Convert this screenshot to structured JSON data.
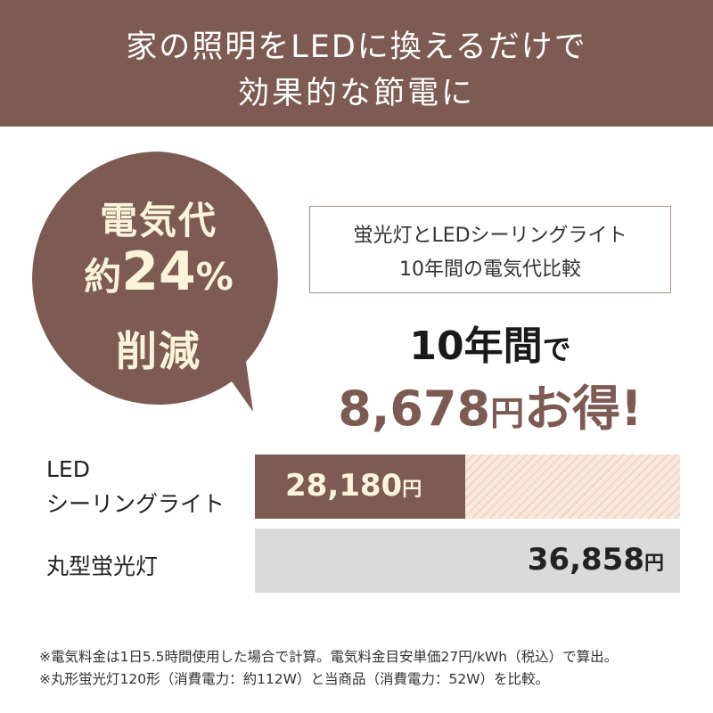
{
  "header": {
    "line1": "家の照明をLEDに換えるだけで",
    "line2": "効果的な節電に"
  },
  "bubble": {
    "line1": "電気代",
    "line2_prefix": "約",
    "line2_value": "24",
    "line2_suffix": "%",
    "line3": "削減",
    "color": "#7d5b53"
  },
  "compare_box": {
    "line1": "蛍光灯とLEDシーリングライト",
    "line2": "10年間の電気代比較"
  },
  "savings": {
    "period": "10年間",
    "particle": "で",
    "amount": "8,678",
    "unit": "円",
    "suffix": "お得!"
  },
  "bars": {
    "max_value": 36858,
    "led": {
      "label_line1": "LED",
      "label_line2": "シーリングライト",
      "value": 28180,
      "value_text": "28,180",
      "unit": "円",
      "color": "#7d5b53"
    },
    "cfl": {
      "label": "丸型蛍光灯",
      "value": 36858,
      "value_text": "36,858",
      "unit": "円",
      "color": "#dadada"
    }
  },
  "notes": [
    "※電気料金は1日5.5時間使用した場合で計算。電気料金目安単価27円/kWh（税込）で算出。",
    "※丸形蛍光灯120形（消費電力：約112W）と当商品（消費電力：52W）を比較。"
  ]
}
